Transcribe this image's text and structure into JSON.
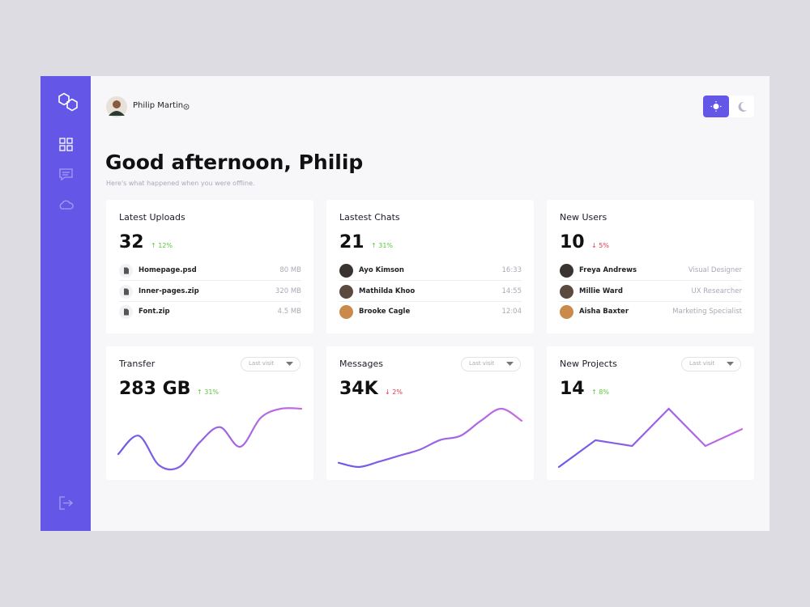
{
  "user": {
    "name": "Philip Martin"
  },
  "greeting": {
    "title": "Good afternoon, Philip",
    "subtitle": "Here's what happened when you were offline."
  },
  "stat_cards": [
    {
      "title": "Latest Uploads",
      "value": 32,
      "change": "↑ 12%",
      "direction": "up",
      "item_kind": "file",
      "items": [
        {
          "name": "Homepage.psd",
          "meta": "80 MB"
        },
        {
          "name": "Inner-pages.zip",
          "meta": "320 MB"
        },
        {
          "name": "Font.zip",
          "meta": "4.5 MB"
        }
      ]
    },
    {
      "title": "Lastest Chats",
      "value": 21,
      "change": "↑ 31%",
      "direction": "up",
      "item_kind": "person",
      "items": [
        {
          "name": "Ayo Kimson",
          "meta": "16:33"
        },
        {
          "name": "Mathilda Khoo",
          "meta": "14:55"
        },
        {
          "name": "Brooke Cagle",
          "meta": "12:04"
        }
      ]
    },
    {
      "title": "New Users",
      "value": 10,
      "change": "↓ 5%",
      "direction": "down",
      "item_kind": "person",
      "items": [
        {
          "name": "Freya Andrews",
          "meta": "Visual Designer"
        },
        {
          "name": "Millie Ward",
          "meta": "UX Researcher"
        },
        {
          "name": "Aisha Baxter",
          "meta": "Marketing Specialist"
        }
      ]
    }
  ],
  "chart_cards": [
    {
      "title": "Transfer",
      "filter": "Last visit",
      "value": "283 GB",
      "change": "↑ 31%",
      "direction": "up",
      "type": "curve",
      "trend": [
        26,
        56,
        8,
        5,
        45,
        70,
        38,
        85,
        100,
        100
      ]
    },
    {
      "title": "Messages",
      "filter": "Last visit",
      "value": "34K",
      "change": "↓ 2%",
      "direction": "down",
      "type": "curve",
      "trend": [
        10,
        3,
        12,
        22,
        32,
        48,
        55,
        80,
        100,
        80
      ]
    },
    {
      "title": "New Projects",
      "filter": "Last visit",
      "value": 14,
      "change": "↑ 8%",
      "direction": "up",
      "type": "line",
      "trend": [
        0,
        46,
        36,
        100,
        36,
        65
      ]
    }
  ]
}
